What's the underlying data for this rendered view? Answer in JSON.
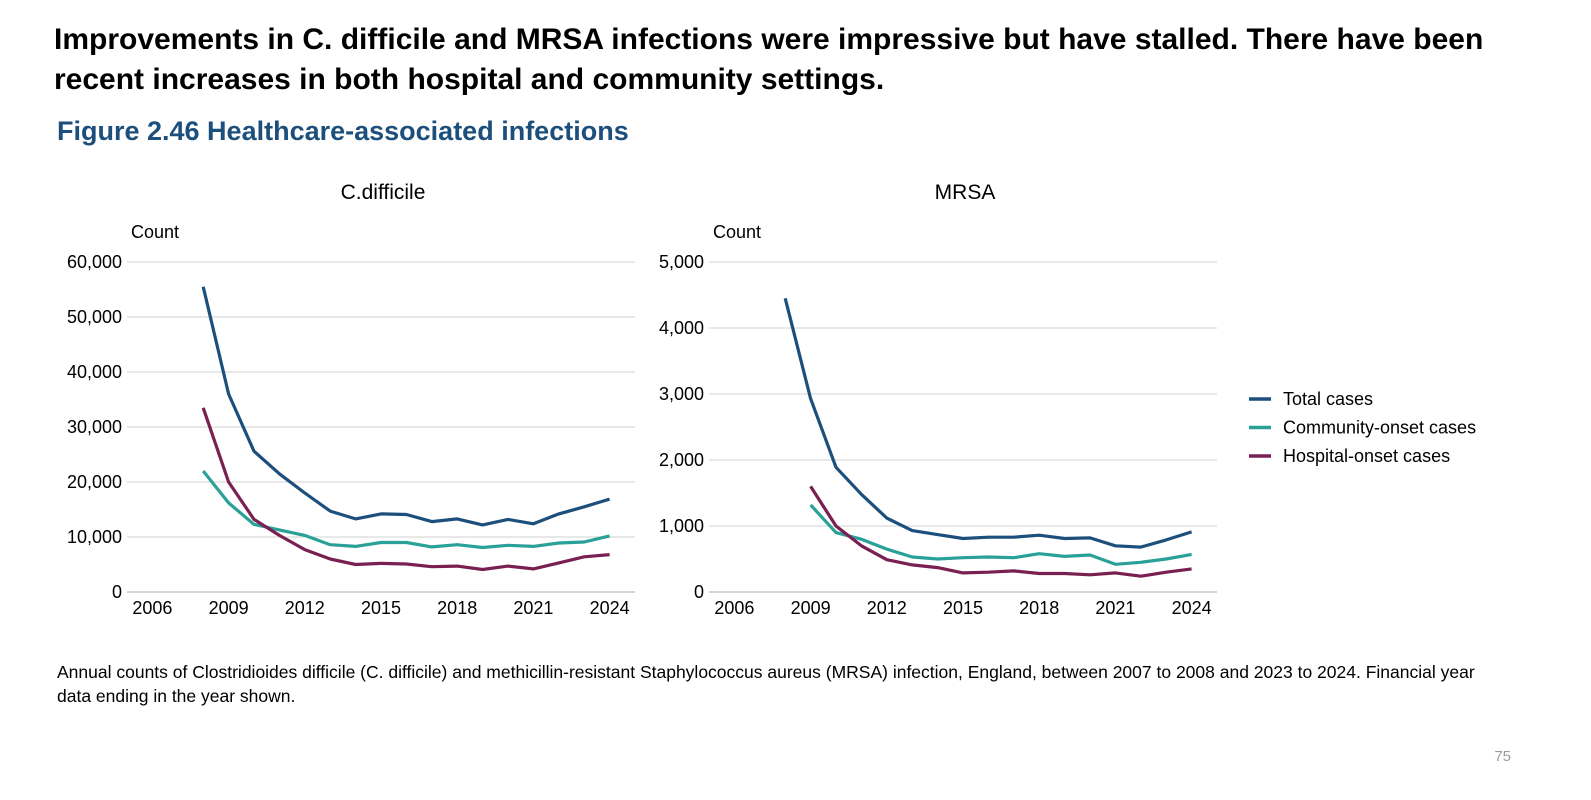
{
  "headline": "Improvements in C. difficile and MRSA infections were impressive but have stalled. There have been recent increases in both hospital and community settings.",
  "figure_title": "Figure 2.46 Healthcare-associated infections",
  "caption": "Annual counts of Clostridioides difficile (C. difficile) and methicillin-resistant Staphylococcus aureus (MRSA) infection, England, between 2007 to 2008 and 2023 to 2024. Financial year data ending in the year shown.",
  "page_number": "75",
  "colors": {
    "total": "#1d4f7c",
    "community": "#2aa198",
    "hospital": "#7a1f52",
    "grid": "#d9d9d9"
  },
  "legend": [
    {
      "key": "total",
      "label": "Total cases"
    },
    {
      "key": "community",
      "label": "Community-onset cases"
    },
    {
      "key": "hospital",
      "label": "Hospital-onset cases"
    }
  ],
  "chart_data": [
    {
      "type": "line",
      "title": "C.difficile",
      "ylabel": "Count",
      "xlabel": "",
      "xlim": [
        2005,
        2025
      ],
      "ylim": [
        0,
        60000
      ],
      "xticks": [
        2006,
        2009,
        2012,
        2015,
        2018,
        2021,
        2024
      ],
      "xtick_labels": [
        "2006",
        "2009",
        "2012",
        "2015",
        "2018",
        "2021",
        "2024"
      ],
      "yticks": [
        0,
        10000,
        20000,
        30000,
        40000,
        50000,
        60000
      ],
      "ytick_labels": [
        "0",
        "10,000",
        "20,000",
        "30,000",
        "40,000",
        "50,000",
        "60,000"
      ],
      "x": [
        2008,
        2009,
        2010,
        2011,
        2012,
        2013,
        2014,
        2015,
        2016,
        2017,
        2018,
        2019,
        2020,
        2021,
        2022,
        2023,
        2024
      ],
      "series": [
        {
          "key": "total",
          "name": "Total cases",
          "values": [
            55500,
            36000,
            25600,
            21500,
            18000,
            14700,
            13300,
            14200,
            14100,
            12800,
            13300,
            12200,
            13200,
            12400,
            14200,
            15500,
            16900
          ]
        },
        {
          "key": "community",
          "name": "Community-onset cases",
          "x": [
            2008,
            2009,
            2010,
            2011,
            2012,
            2013,
            2014,
            2015,
            2016,
            2017,
            2018,
            2019,
            2020,
            2021,
            2022,
            2023,
            2024
          ],
          "values": [
            22000,
            16200,
            12300,
            11300,
            10300,
            8600,
            8300,
            9000,
            9000,
            8200,
            8600,
            8100,
            8500,
            8300,
            8900,
            9100,
            10200
          ]
        },
        {
          "key": "hospital",
          "name": "Hospital-onset cases",
          "x": [
            2008,
            2009,
            2010,
            2011,
            2012,
            2013,
            2014,
            2015,
            2016,
            2017,
            2018,
            2019,
            2020,
            2021,
            2022,
            2023,
            2024
          ],
          "values": [
            33500,
            20000,
            13200,
            10300,
            7700,
            6000,
            5000,
            5200,
            5100,
            4600,
            4700,
            4100,
            4700,
            4200,
            5300,
            6400,
            6800
          ]
        }
      ]
    },
    {
      "type": "line",
      "title": "MRSA",
      "ylabel": "Count",
      "xlabel": "",
      "xlim": [
        2005,
        2025
      ],
      "ylim": [
        0,
        5000
      ],
      "xticks": [
        2006,
        2009,
        2012,
        2015,
        2018,
        2021,
        2024
      ],
      "xtick_labels": [
        "2006",
        "2009",
        "2012",
        "2015",
        "2018",
        "2021",
        "2024"
      ],
      "yticks": [
        0,
        1000,
        2000,
        3000,
        4000,
        5000
      ],
      "ytick_labels": [
        "0",
        "1,000",
        "2,000",
        "3,000",
        "4,000",
        "5,000"
      ],
      "x": [
        2008,
        2009,
        2010,
        2011,
        2012,
        2013,
        2014,
        2015,
        2016,
        2017,
        2018,
        2019,
        2020,
        2021,
        2022,
        2023,
        2024
      ],
      "series": [
        {
          "key": "total",
          "name": "Total cases",
          "values": [
            4450,
            2930,
            1890,
            1480,
            1120,
            930,
            870,
            810,
            830,
            830,
            860,
            810,
            820,
            700,
            680,
            790,
            910
          ]
        },
        {
          "key": "community",
          "name": "Community-onset cases",
          "x": [
            2009,
            2010,
            2011,
            2012,
            2013,
            2014,
            2015,
            2016,
            2017,
            2018,
            2019,
            2020,
            2021,
            2022,
            2023,
            2024
          ],
          "values": [
            1320,
            900,
            800,
            650,
            530,
            500,
            520,
            530,
            520,
            580,
            540,
            560,
            420,
            450,
            500,
            570
          ]
        },
        {
          "key": "hospital",
          "name": "Hospital-onset cases",
          "x": [
            2009,
            2010,
            2011,
            2012,
            2013,
            2014,
            2015,
            2016,
            2017,
            2018,
            2019,
            2020,
            2021,
            2022,
            2023,
            2024
          ],
          "values": [
            1600,
            1000,
            700,
            490,
            410,
            370,
            290,
            300,
            320,
            280,
            280,
            260,
            290,
            240,
            300,
            350
          ]
        }
      ]
    }
  ]
}
